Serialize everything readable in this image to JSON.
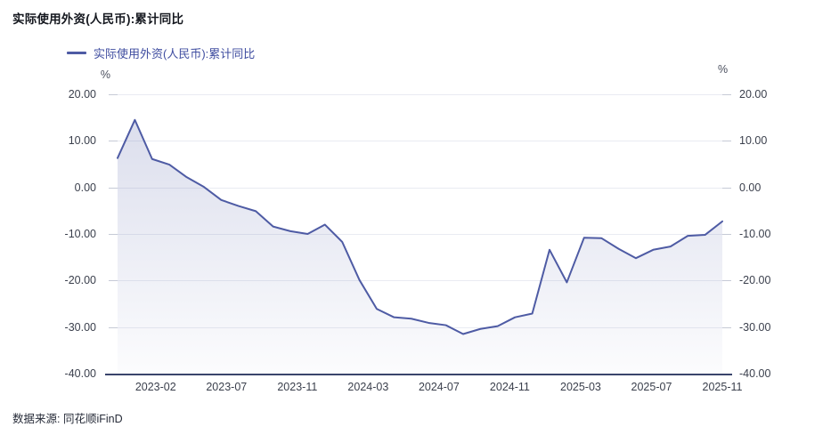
{
  "title": "实际使用外资(人民币):累计同比",
  "legend": {
    "label": "实际使用外资(人民币):累计同比"
  },
  "axes": {
    "y_unit_left": "%",
    "y_unit_right": "%",
    "y_ticks": [
      "20.00",
      "10.00",
      "0.00",
      "-10.00",
      "-20.00",
      "-30.00",
      "-40.00"
    ],
    "x_ticks": [
      "2023-02",
      "2023-07",
      "2023-11",
      "2024-03",
      "2024-07",
      "2024-11",
      "2025-03",
      "2025-07",
      "2025-11"
    ]
  },
  "footer": {
    "source": "数据来源: 同花顺iFinD"
  },
  "colors": {
    "line": "#4e5ba4",
    "area_top": "rgba(78,91,164,0.20)",
    "area_bottom": "rgba(78,91,164,0.02)",
    "legend_text": "#3f4da0",
    "grid": "#e9ebf2",
    "axis_line": "#39446b"
  },
  "chart_data": {
    "type": "area",
    "title": "实际使用外资(人民币):累计同比",
    "ylabel": "%",
    "ylim": [
      -40,
      20
    ],
    "grid": true,
    "legend": [
      "实际使用外资(人民币):累计同比"
    ],
    "legend_position": "top-left",
    "x": [
      "2022-12",
      "2023-01",
      "2023-02",
      "2023-03",
      "2023-04",
      "2023-05",
      "2023-06",
      "2023-07",
      "2023-08",
      "2023-09",
      "2023-10",
      "2023-11",
      "2023-12",
      "2024-01",
      "2024-02",
      "2024-03",
      "2024-04",
      "2024-05",
      "2024-06",
      "2024-07",
      "2024-08",
      "2024-09",
      "2024-10",
      "2024-11",
      "2024-12",
      "2025-01",
      "2025-02",
      "2025-03",
      "2025-04",
      "2025-05",
      "2025-06",
      "2025-07",
      "2025-08",
      "2025-09",
      "2025-10",
      "2025-11"
    ],
    "values": [
      6.3,
      14.5,
      6.1,
      4.9,
      2.2,
      0.1,
      -2.7,
      -4.0,
      -5.1,
      -8.4,
      -9.4,
      -10.0,
      -8.0,
      -11.7,
      -19.9,
      -26.1,
      -27.9,
      -28.2,
      -29.1,
      -29.6,
      -31.5,
      -30.4,
      -29.8,
      -27.9,
      -27.1,
      -13.4,
      -20.4,
      -10.8,
      -10.9,
      -13.2,
      -15.2,
      -13.4,
      -12.7,
      -10.4,
      -10.2,
      -7.3
    ],
    "x_tick_labels": [
      "2023-02",
      "2023-07",
      "2023-11",
      "2024-03",
      "2024-07",
      "2024-11",
      "2025-03",
      "2025-07",
      "2025-11"
    ]
  }
}
